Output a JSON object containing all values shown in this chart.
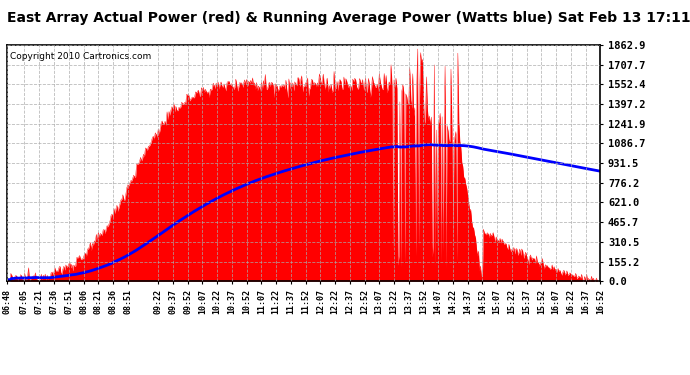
{
  "title": "East Array Actual Power (red) & Running Average Power (Watts blue) Sat Feb 13 17:11",
  "copyright_text": "Copyright 2010 Cartronics.com",
  "title_fontsize": 10,
  "background_color": "#ffffff",
  "plot_bg_color": "#ffffff",
  "yticks": [
    0.0,
    155.2,
    310.5,
    465.7,
    621.0,
    776.2,
    931.5,
    1086.7,
    1241.9,
    1397.2,
    1552.4,
    1707.7,
    1862.9
  ],
  "ymax": 1862.9,
  "ymin": 0.0,
  "red_color": "#ff0000",
  "blue_color": "#0000ff",
  "fill_alpha": 1.0,
  "grid_color": "#aaaaaa",
  "xtick_labels": [
    "06:48",
    "07:05",
    "07:21",
    "07:36",
    "07:51",
    "08:06",
    "08:21",
    "08:36",
    "08:51",
    "09:22",
    "09:37",
    "09:52",
    "10:07",
    "10:22",
    "10:37",
    "10:52",
    "11:07",
    "11:22",
    "11:37",
    "11:52",
    "12:07",
    "12:22",
    "12:37",
    "12:52",
    "13:07",
    "13:22",
    "13:37",
    "13:52",
    "14:07",
    "14:22",
    "14:37",
    "14:52",
    "15:07",
    "15:22",
    "15:37",
    "15:52",
    "16:07",
    "16:22",
    "16:37",
    "16:52"
  ]
}
